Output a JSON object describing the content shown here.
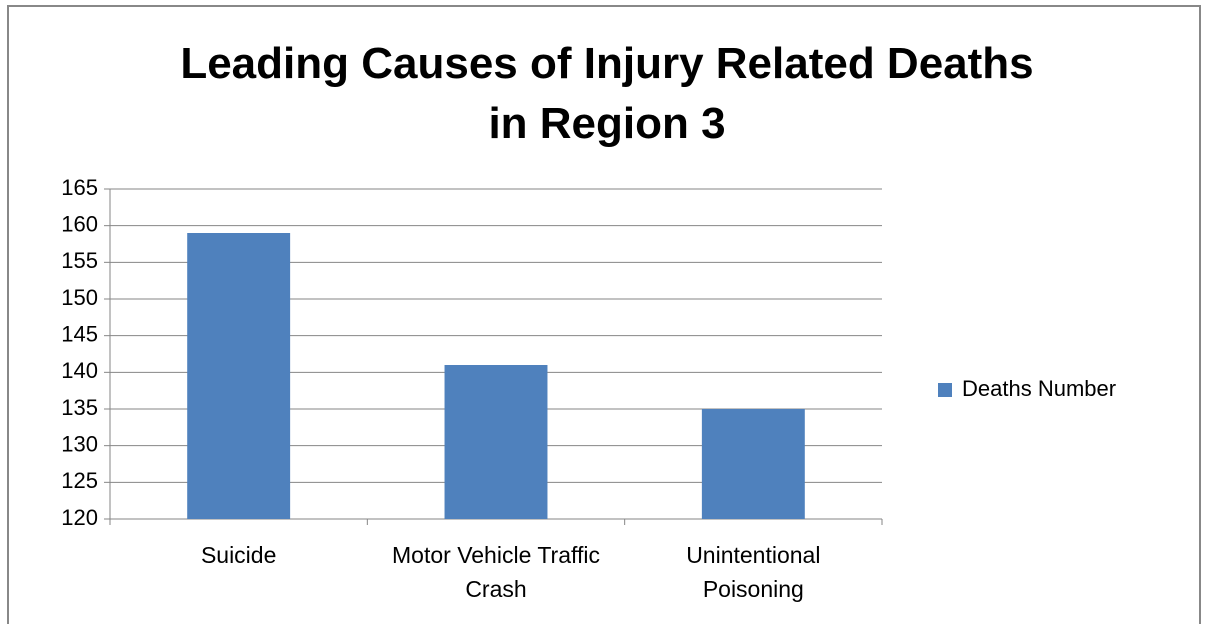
{
  "chart_data": {
    "type": "bar",
    "title": "Leading Causes of Injury Related Deaths in Region 3",
    "categories": [
      "Suicide",
      "Motor Vehicle Traffic Crash",
      "Unintentional Poisoning"
    ],
    "series": [
      {
        "name": "Deaths Number",
        "color": "#4f81bd",
        "values": [
          159,
          141,
          135
        ]
      }
    ],
    "ylim": [
      120,
      165
    ],
    "yticks": [
      120,
      125,
      130,
      135,
      140,
      145,
      150,
      155,
      160,
      165
    ],
    "grid": true,
    "legend": "right"
  }
}
